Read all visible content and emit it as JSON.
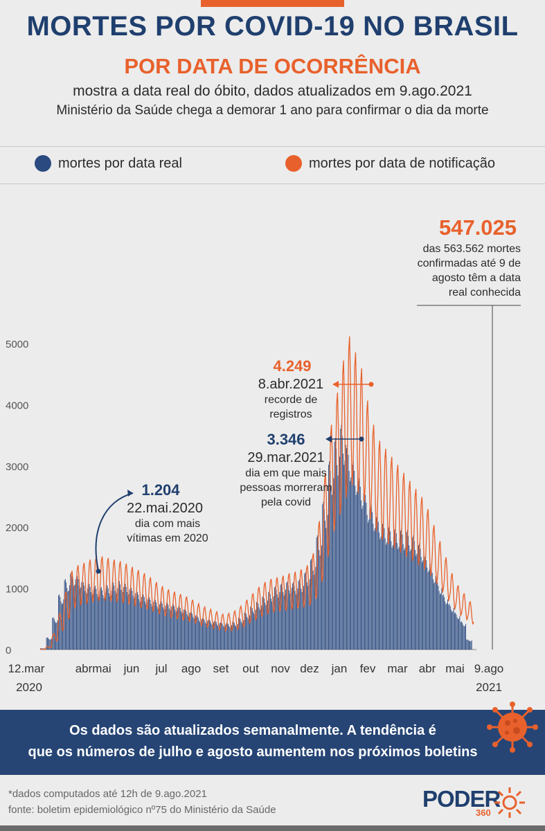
{
  "header": {
    "title": "MORTES POR COVID-19 NO BRASIL",
    "subtitle": "POR DATA DE OCORRÊNCIA",
    "desc1": "mostra a data real do óbito, dados atualizados em 9.ago.2021",
    "desc2": "Ministério da Saúde chega a demorar 1 ano para confirmar o dia da morte"
  },
  "legend": {
    "real": "mortes por data real",
    "notificacao": "mortes por data de notificação"
  },
  "colors": {
    "real": "#2a4a80",
    "notificacao": "#e8612c",
    "title": "#1f3f6e"
  },
  "chart_data": {
    "type": "bar",
    "x_start": "12.mar.2020",
    "x_end": "9.ago.2021",
    "ylim": [
      0,
      5000
    ],
    "yticks": [
      0,
      1000,
      2000,
      3000,
      4000,
      5000
    ],
    "xticks": [
      "12.mar",
      "abr",
      "mai",
      "jun",
      "jul",
      "ago",
      "set",
      "out",
      "nov",
      "dez",
      "jan",
      "fev",
      "mar",
      "abr",
      "mai",
      "9.ago"
    ],
    "year_labels": [
      "2020",
      "2021"
    ],
    "series": [
      {
        "name": "mortes por data real",
        "type": "bar",
        "weekly_average": [
          20,
          180,
          480,
          820,
          1050,
          1150,
          1100,
          1000,
          980,
          950,
          930,
          960,
          1000,
          1020,
          980,
          920,
          860,
          820,
          780,
          740,
          720,
          700,
          680,
          650,
          600,
          560,
          500,
          470,
          450,
          430,
          410,
          400,
          420,
          480,
          560,
          650,
          720,
          800,
          870,
          940,
          980,
          1010,
          1000,
          1040,
          1150,
          1350,
          1700,
          2200,
          2800,
          3150,
          3346,
          3050,
          2800,
          2550,
          2300,
          2150,
          2000,
          1900,
          1850,
          1820,
          1800,
          1780,
          1700,
          1580,
          1400,
          1200,
          1000,
          820,
          680,
          550,
          420,
          150
        ]
      },
      {
        "name": "mortes por data de notificação",
        "type": "line",
        "weekly_average": [
          5,
          40,
          200,
          450,
          720,
          980,
          1050,
          1080,
          1120,
          1150,
          1160,
          1140,
          1120,
          1100,
          1070,
          1030,
          990,
          950,
          900,
          840,
          790,
          750,
          720,
          690,
          660,
          620,
          570,
          530,
          500,
          470,
          440,
          450,
          480,
          540,
          620,
          700,
          780,
          840,
          880,
          900,
          920,
          950,
          970,
          1000,
          1050,
          1200,
          1600,
          2200,
          2800,
          3200,
          3600,
          3900,
          3700,
          3500,
          3100,
          2800,
          2600,
          2500,
          2400,
          2300,
          2200,
          2100,
          2000,
          1900,
          1750,
          1550,
          1350,
          1150,
          950,
          800,
          700,
          600
        ]
      }
    ],
    "annotations": [
      {
        "value": "1.204",
        "date": "22.mai.2020",
        "note": "dia com mais vítimas em 2020"
      },
      {
        "value": "4.249",
        "date": "8.abr.2021",
        "note": "recorde de registros"
      },
      {
        "value": "3.346",
        "date": "29.mar.2021",
        "note": "dia em que mais pessoas morreram pela covid"
      }
    ],
    "total": {
      "value": "547.025",
      "lines": [
        "das 563.562 mortes",
        "confirmadas até 9 de",
        "agosto têm a data",
        "real conhecida"
      ]
    }
  },
  "banner": {
    "line1": "Os dados são atualizados semanalmente. A tendência é",
    "line2": "que os números de julho e agosto aumentem nos próximos boletins"
  },
  "footer": {
    "note1": "*dados computados até 12h de 9.ago.2021",
    "note2": "fonte: boletim epidemiológico nº75 do Ministério da Saúde",
    "logo_word": "PODER",
    "logo_num": "360"
  }
}
